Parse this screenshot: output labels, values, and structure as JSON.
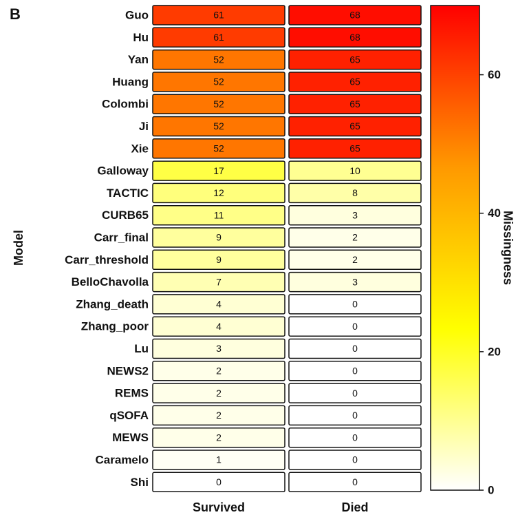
{
  "chart_data": {
    "type": "heatmap",
    "panel_label": "B",
    "ylabel": "Model",
    "colorbar_label": "Missingness",
    "columns": [
      "Survived",
      "Died"
    ],
    "rows": [
      "Guo",
      "Hu",
      "Yan",
      "Huang",
      "Colombi",
      "Ji",
      "Xie",
      "Galloway",
      "TACTIC",
      "CURB65",
      "Carr_final",
      "Carr_threshold",
      "BelloChavolla",
      "Zhang_death",
      "Zhang_poor",
      "Lu",
      "NEWS2",
      "REMS",
      "qSOFA",
      "MEWS",
      "Caramelo",
      "Shi"
    ],
    "values": [
      [
        61,
        68
      ],
      [
        61,
        68
      ],
      [
        52,
        65
      ],
      [
        52,
        65
      ],
      [
        52,
        65
      ],
      [
        52,
        65
      ],
      [
        52,
        65
      ],
      [
        17,
        10
      ],
      [
        12,
        8
      ],
      [
        11,
        3
      ],
      [
        9,
        2
      ],
      [
        9,
        2
      ],
      [
        7,
        3
      ],
      [
        4,
        0
      ],
      [
        4,
        0
      ],
      [
        3,
        0
      ],
      [
        2,
        0
      ],
      [
        2,
        0
      ],
      [
        2,
        0
      ],
      [
        2,
        0
      ],
      [
        1,
        0
      ],
      [
        0,
        0
      ]
    ],
    "zlim": [
      0,
      70
    ],
    "zticks": [
      0,
      20,
      40,
      60
    ],
    "colors": [
      "#ffffff",
      "#ffff00",
      "#ff9900",
      "#ff0000"
    ]
  }
}
